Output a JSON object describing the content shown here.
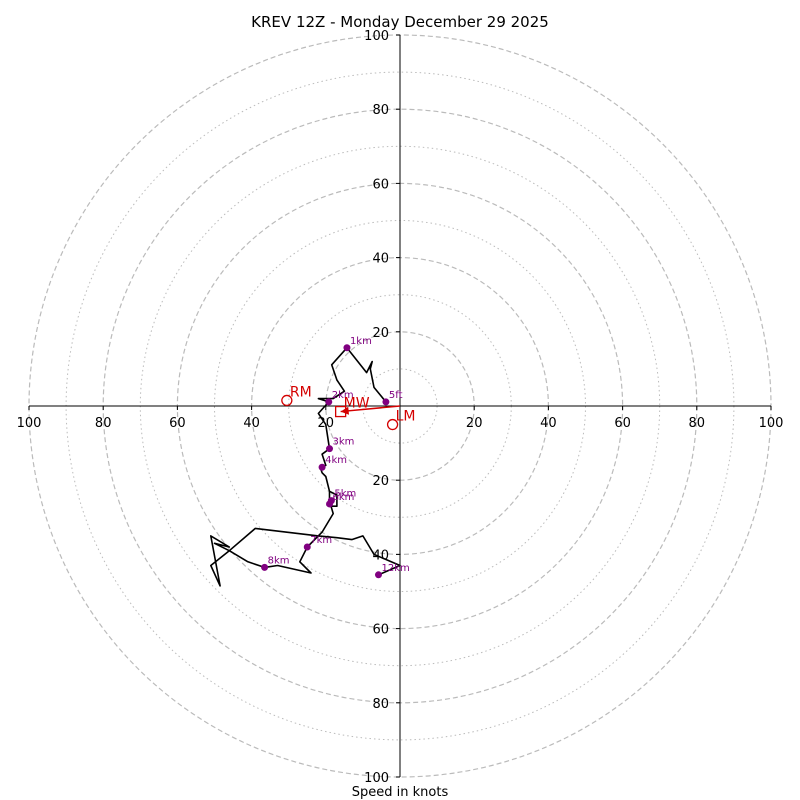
{
  "chart_data": {
    "type": "hodograph",
    "title": "KREV 12Z - Monday December 29 2025",
    "xlabel": "Speed in knots",
    "max_speed": 100,
    "dashed_rings": [
      20,
      40,
      60,
      80,
      100
    ],
    "dotted_rings": [
      10,
      30,
      50,
      70,
      90
    ],
    "x_ticks": [
      {
        "value": -100,
        "label": "100"
      },
      {
        "value": -80,
        "label": "80"
      },
      {
        "value": -60,
        "label": "60"
      },
      {
        "value": -40,
        "label": "40"
      },
      {
        "value": -20,
        "label": "20"
      },
      {
        "value": 20,
        "label": "20"
      },
      {
        "value": 40,
        "label": "40"
      },
      {
        "value": 60,
        "label": "60"
      },
      {
        "value": 80,
        "label": "80"
      },
      {
        "value": 100,
        "label": "100"
      }
    ],
    "y_ticks": [
      {
        "value": 100,
        "label": "100"
      },
      {
        "value": 80,
        "label": "80"
      },
      {
        "value": 60,
        "label": "60"
      },
      {
        "value": 40,
        "label": "40"
      },
      {
        "value": 20,
        "label": "20"
      },
      {
        "value": -20,
        "label": "20"
      },
      {
        "value": -40,
        "label": "40"
      },
      {
        "value": -60,
        "label": "60"
      },
      {
        "value": -80,
        "label": "80"
      },
      {
        "value": -100,
        "label": "100"
      }
    ],
    "trace": [
      [
        -3.8,
        1.1
      ],
      [
        -7,
        5
      ],
      [
        -8,
        10
      ],
      [
        -7.5,
        12
      ],
      [
        -9,
        9
      ],
      [
        -14.3,
        15.7
      ],
      [
        -18.4,
        11.1
      ],
      [
        -17,
        7
      ],
      [
        -15,
        4
      ],
      [
        -18,
        2
      ],
      [
        -22,
        2
      ],
      [
        -19.2,
        1.1
      ],
      [
        -22,
        -2
      ],
      [
        -20,
        -5
      ],
      [
        -19,
        -11.5
      ],
      [
        -21,
        -13
      ],
      [
        -20,
        -16
      ],
      [
        -21.5,
        -16.5
      ],
      [
        -21,
        -18
      ],
      [
        -20,
        -19
      ],
      [
        -19,
        -23
      ],
      [
        -19,
        -25.6
      ],
      [
        -19,
        -27
      ],
      [
        -17,
        -27
      ],
      [
        -17,
        -24
      ],
      [
        -19,
        -23
      ],
      [
        -19,
        -25.6
      ],
      [
        -18,
        -29
      ],
      [
        -21,
        -34
      ],
      [
        -25,
        -38
      ],
      [
        -27,
        -42
      ],
      [
        -24,
        -45
      ],
      [
        -33,
        -43
      ],
      [
        -36.5,
        -43.5
      ],
      [
        -41,
        -42
      ],
      [
        -46,
        -39
      ],
      [
        -50,
        -37
      ],
      [
        -46,
        -38
      ],
      [
        -51,
        -35
      ],
      [
        -48.5,
        -48.5
      ],
      [
        -51,
        -43
      ],
      [
        -46,
        -39
      ],
      [
        -39,
        -33
      ],
      [
        -22,
        -35
      ],
      [
        -17,
        -35.5
      ],
      [
        -13,
        -36
      ],
      [
        -10,
        -35
      ],
      [
        -7,
        -40
      ],
      [
        0,
        -43
      ],
      [
        -5.8,
        -45.5
      ]
    ],
    "height_markers": [
      {
        "label": "5ft",
        "u": -3.8,
        "v": 1.1
      },
      {
        "label": "1km",
        "u": -14.3,
        "v": 15.7
      },
      {
        "label": "2km",
        "u": -19.2,
        "v": 1.1
      },
      {
        "label": "3km",
        "u": -19,
        "v": -11.5
      },
      {
        "label": "4km",
        "u": -21,
        "v": -16.5
      },
      {
        "label": "5km",
        "u": -18.5,
        "v": -25.5
      },
      {
        "label": "6km",
        "u": -19,
        "v": -26.4
      },
      {
        "label": "7km",
        "u": -25,
        "v": -38
      },
      {
        "label": "8km",
        "u": -36.5,
        "v": -43.5
      },
      {
        "label": "12km",
        "u": -5.8,
        "v": -45.5
      }
    ],
    "storm_motions": {
      "rm": {
        "label": "RM",
        "u": -30.5,
        "v": 1.5
      },
      "lm": {
        "label": "LM",
        "u": -2,
        "v": -5
      },
      "mw": {
        "label": "MW",
        "u": -16,
        "v": -1.5
      }
    },
    "mean_wind_arrow": {
      "from": [
        0,
        0
      ],
      "to": [
        -16,
        -1.5
      ]
    },
    "colors": {
      "trace": "#000000",
      "marker": "#800080",
      "storm_motion": "#d40000",
      "grid": "#bbbbbb",
      "axis": "#000000"
    }
  }
}
